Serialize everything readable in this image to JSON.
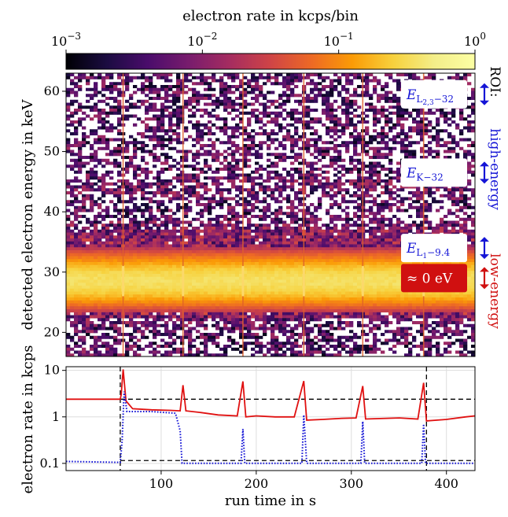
{
  "chart_data": [
    {
      "type": "heatmap",
      "title": "",
      "colorbar": {
        "label": "electron rate in kcps/bin",
        "scale": "log",
        "range": [
          0.001,
          1
        ],
        "ticks": [
          {
            "value": 0.001,
            "base": "10",
            "exp": "−3"
          },
          {
            "value": 0.01,
            "base": "10",
            "exp": "−2"
          },
          {
            "value": 0.1,
            "base": "10",
            "exp": "−1"
          },
          {
            "value": 1,
            "base": "",
            "exp": "",
            "label": "10",
            "sup": "0"
          }
        ],
        "colormap": "inferno",
        "placement": "top"
      },
      "xlim": [
        0,
        430
      ],
      "ylim": [
        16,
        63
      ],
      "ylabel": "detected electron energy in keV",
      "yticks": [
        20,
        30,
        40,
        50,
        60
      ],
      "spike_times": [
        60,
        123,
        186,
        250,
        312,
        376
      ],
      "bands": [
        {
          "center": 28.5,
          "width": 2.2,
          "level": 0.35
        },
        {
          "center": 36.0,
          "width": 1.2,
          "level": 0.012
        },
        {
          "center": 33.0,
          "width": 0.6,
          "level": 0.008
        },
        {
          "center": 44.0,
          "width": 1.0,
          "level": 0.004
        }
      ],
      "annotations": [
        {
          "main": "E",
          "sub": "L",
          "subsub": "2,3",
          "tail": "−32",
          "energy": 59.5,
          "color": "#1515d6"
        },
        {
          "main": "E",
          "sub": "K−32",
          "subsub": "",
          "tail": "",
          "energy": 46.5,
          "color": "#1515d6"
        },
        {
          "main": "E",
          "sub": "L",
          "subsub": "1",
          "tail": "−9.4",
          "energy": 34.0,
          "color": "#1515d6"
        },
        {
          "main": "≈ 0 eV",
          "sub": "",
          "subsub": "",
          "tail": "",
          "energy": 29.0,
          "color": "#ffffff",
          "box": "#d01010"
        }
      ],
      "roi": {
        "title": "ROI:",
        "high": {
          "label": "high-energy",
          "color": "#1515d6",
          "arrows_at": [
            59.5,
            46.5,
            34.0
          ]
        },
        "low": {
          "label": "low-energy",
          "color": "#d01010",
          "arrows_at": [
            29.0
          ]
        }
      }
    },
    {
      "type": "line",
      "title": "",
      "xlabel": "run time in s",
      "ylabel": "electron rate in kcps",
      "xlim": [
        0,
        430
      ],
      "ylim": [
        0.07,
        12
      ],
      "yscale": "log",
      "xticks": [
        100,
        200,
        300,
        400
      ],
      "yticks": [
        {
          "value": 0.1,
          "label": "0.1"
        },
        {
          "value": 1,
          "label": "1"
        },
        {
          "value": 10,
          "label": "10"
        }
      ],
      "grid": true,
      "reference_lines": {
        "vertical": [
          57,
          379
        ],
        "horizontal": [
          2.4,
          0.115
        ]
      },
      "series": [
        {
          "name": "",
          "color": "#e01010",
          "style": "solid",
          "points": [
            [
              0,
              2.4
            ],
            [
              57,
              2.4
            ],
            [
              58,
              3.0
            ],
            [
              60,
              10.5
            ],
            [
              63,
              2.2
            ],
            [
              70,
              1.5
            ],
            [
              90,
              1.42
            ],
            [
              110,
              1.38
            ],
            [
              120,
              1.35
            ],
            [
              123,
              4.8
            ],
            [
              126,
              1.35
            ],
            [
              140,
              1.25
            ],
            [
              160,
              1.1
            ],
            [
              180,
              1.05
            ],
            [
              186,
              5.8
            ],
            [
              189,
              1.0
            ],
            [
              200,
              1.05
            ],
            [
              220,
              1.0
            ],
            [
              240,
              1.0
            ],
            [
              250,
              5.9
            ],
            [
              253,
              0.85
            ],
            [
              270,
              0.88
            ],
            [
              290,
              0.93
            ],
            [
              305,
              0.95
            ],
            [
              312,
              4.6
            ],
            [
              315,
              0.9
            ],
            [
              330,
              0.92
            ],
            [
              350,
              0.95
            ],
            [
              370,
              0.9
            ],
            [
              376,
              5.4
            ],
            [
              379,
              0.82
            ],
            [
              400,
              0.88
            ],
            [
              420,
              1.0
            ],
            [
              430,
              1.05
            ]
          ]
        },
        {
          "name": "",
          "color": "#1515d6",
          "style": "dotted",
          "points": [
            [
              0,
              0.11
            ],
            [
              57,
              0.105
            ],
            [
              59,
              0.3
            ],
            [
              61,
              3.5
            ],
            [
              64,
              1.3
            ],
            [
              90,
              1.3
            ],
            [
              115,
              1.2
            ],
            [
              120,
              0.5
            ],
            [
              122,
              0.1
            ],
            [
              150,
              0.1
            ],
            [
              184,
              0.1
            ],
            [
              186,
              0.55
            ],
            [
              188,
              0.1
            ],
            [
              220,
              0.1
            ],
            [
              248,
              0.1
            ],
            [
              250,
              1.1
            ],
            [
              253,
              0.1
            ],
            [
              280,
              0.1
            ],
            [
              310,
              0.1
            ],
            [
              312,
              0.8
            ],
            [
              314,
              0.1
            ],
            [
              340,
              0.1
            ],
            [
              374,
              0.1
            ],
            [
              376,
              0.7
            ],
            [
              378,
              0.1
            ],
            [
              430,
              0.1
            ]
          ]
        }
      ]
    }
  ]
}
